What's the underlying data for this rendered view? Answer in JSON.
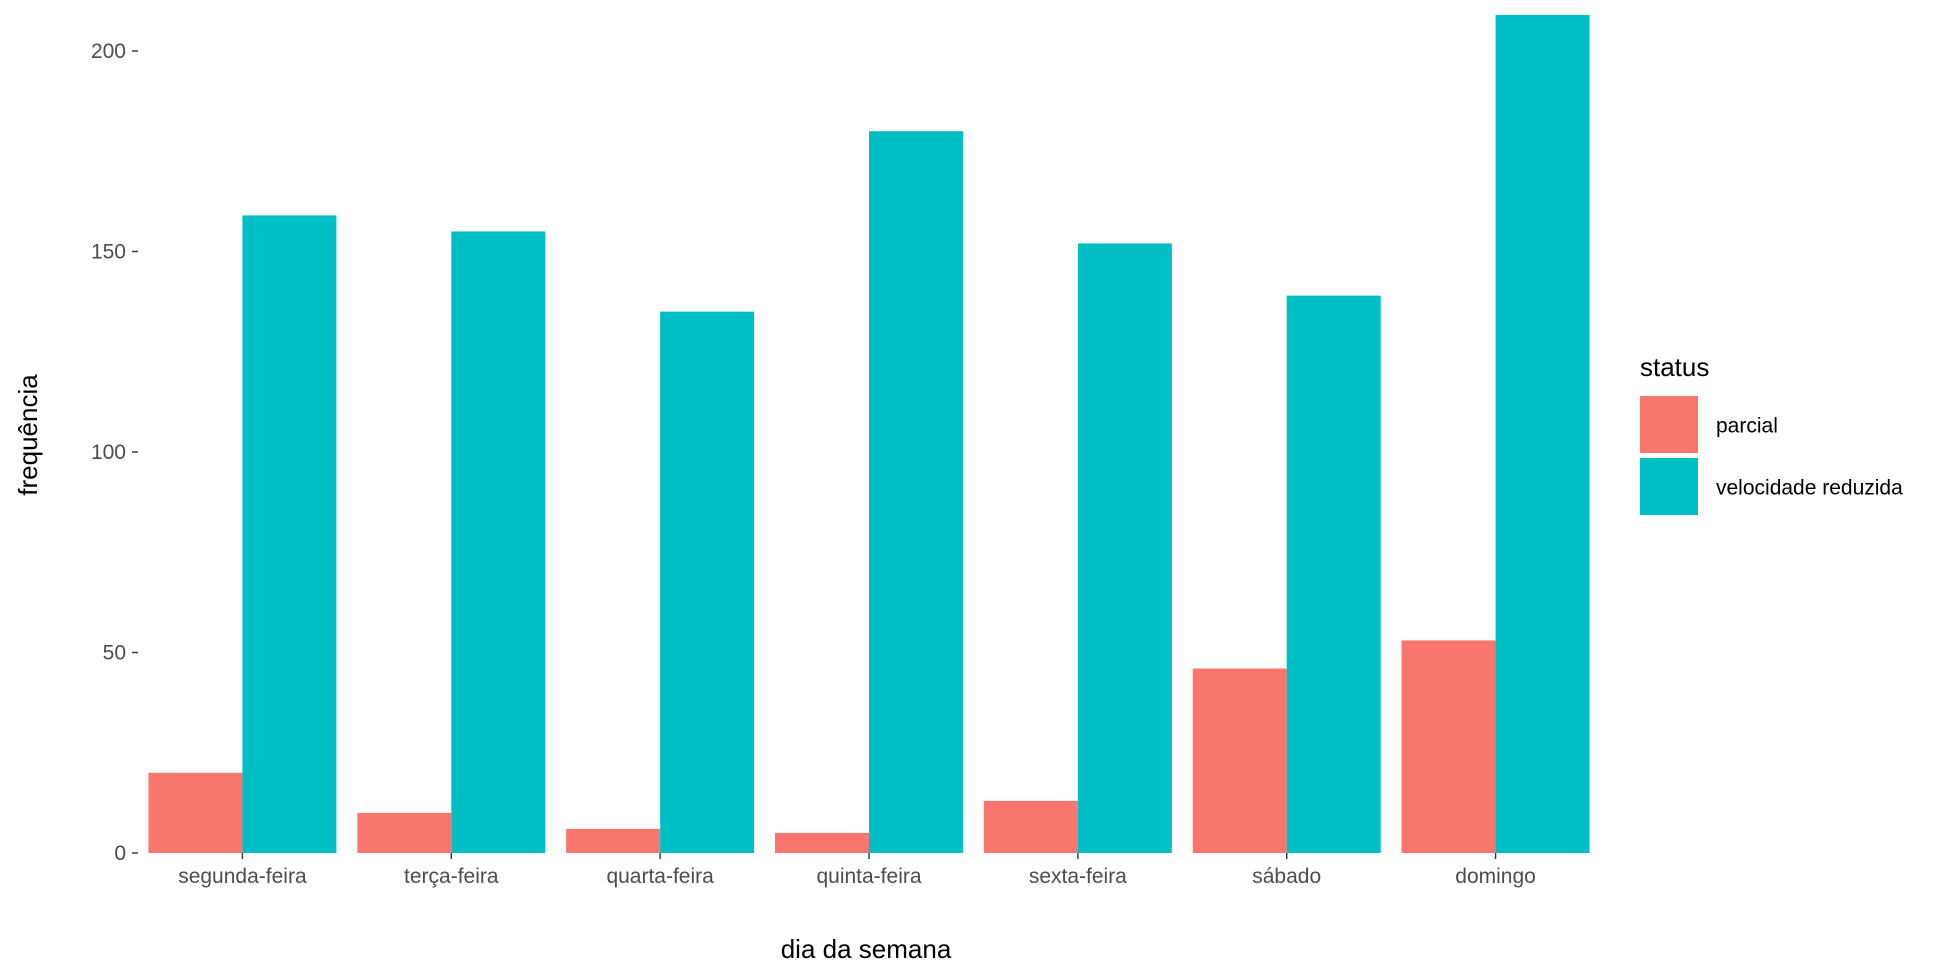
{
  "chart_data": {
    "type": "bar",
    "title": "",
    "xlabel": "dia da semana",
    "ylabel": "frequência",
    "categories": [
      "segunda-feira",
      "terça-feira",
      "quarta-feira",
      "quinta-feira",
      "sexta-feira",
      "sábado",
      "domingo"
    ],
    "series": [
      {
        "name": "parcial",
        "color": "#F8766D",
        "values": [
          20,
          10,
          6,
          5,
          13,
          46,
          53
        ]
      },
      {
        "name": "velocidade reduzida",
        "color": "#00BFC4",
        "values": [
          159,
          155,
          135,
          180,
          152,
          139,
          209
        ]
      }
    ],
    "yticks": [
      0,
      50,
      100,
      150,
      200
    ],
    "ylim": [
      0,
      209
    ],
    "grid": false,
    "legend": {
      "title": "status",
      "position": "right"
    }
  }
}
